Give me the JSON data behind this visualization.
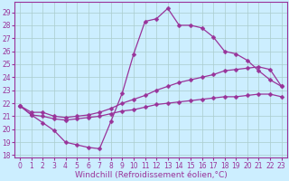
{
  "bg_color": "#cceeff",
  "grid_color": "#aacccc",
  "line_color": "#993399",
  "marker": "D",
  "markersize": 2.5,
  "linewidth": 0.9,
  "xlabel": "Windchill (Refroidissement éolien,°C)",
  "xlabel_fontsize": 6.5,
  "xlim": [
    -0.5,
    23.5
  ],
  "ylim": [
    17.8,
    29.8
  ],
  "xticks": [
    0,
    1,
    2,
    3,
    4,
    5,
    6,
    7,
    8,
    9,
    10,
    11,
    12,
    13,
    14,
    15,
    16,
    17,
    18,
    19,
    20,
    21,
    22,
    23
  ],
  "yticks": [
    18,
    19,
    20,
    21,
    22,
    23,
    24,
    25,
    26,
    27,
    28,
    29
  ],
  "tick_fontsize": 5.5,
  "lines": [
    {
      "x": [
        0,
        1,
        2,
        3,
        4,
        5,
        6,
        7,
        8,
        9,
        10,
        11,
        12,
        13,
        14,
        15,
        16,
        17,
        18,
        19,
        20,
        21,
        22,
        23
      ],
      "y": [
        21.8,
        21.1,
        20.5,
        19.9,
        19.0,
        18.8,
        18.6,
        18.5,
        20.6,
        22.8,
        25.8,
        28.3,
        28.5,
        29.3,
        28.0,
        28.0,
        27.8,
        27.1,
        26.0,
        25.8,
        25.3,
        24.5,
        23.8,
        23.3
      ]
    },
    {
      "x": [
        0,
        1,
        2,
        3,
        4,
        5,
        6,
        7,
        8,
        9,
        10,
        11,
        12,
        13,
        14,
        15,
        16,
        17,
        18,
        19,
        20,
        21,
        22,
        23
      ],
      "y": [
        21.8,
        21.3,
        21.3,
        21.0,
        20.9,
        21.0,
        21.1,
        21.3,
        21.6,
        22.0,
        22.3,
        22.6,
        23.0,
        23.3,
        23.6,
        23.8,
        24.0,
        24.2,
        24.5,
        24.6,
        24.7,
        24.8,
        24.6,
        23.3
      ]
    },
    {
      "x": [
        0,
        1,
        2,
        3,
        4,
        5,
        6,
        7,
        8,
        9,
        10,
        11,
        12,
        13,
        14,
        15,
        16,
        17,
        18,
        19,
        20,
        21,
        22,
        23
      ],
      "y": [
        21.8,
        21.1,
        21.0,
        20.8,
        20.7,
        20.8,
        20.9,
        21.0,
        21.2,
        21.4,
        21.5,
        21.7,
        21.9,
        22.0,
        22.1,
        22.2,
        22.3,
        22.4,
        22.5,
        22.5,
        22.6,
        22.7,
        22.7,
        22.5
      ]
    }
  ]
}
